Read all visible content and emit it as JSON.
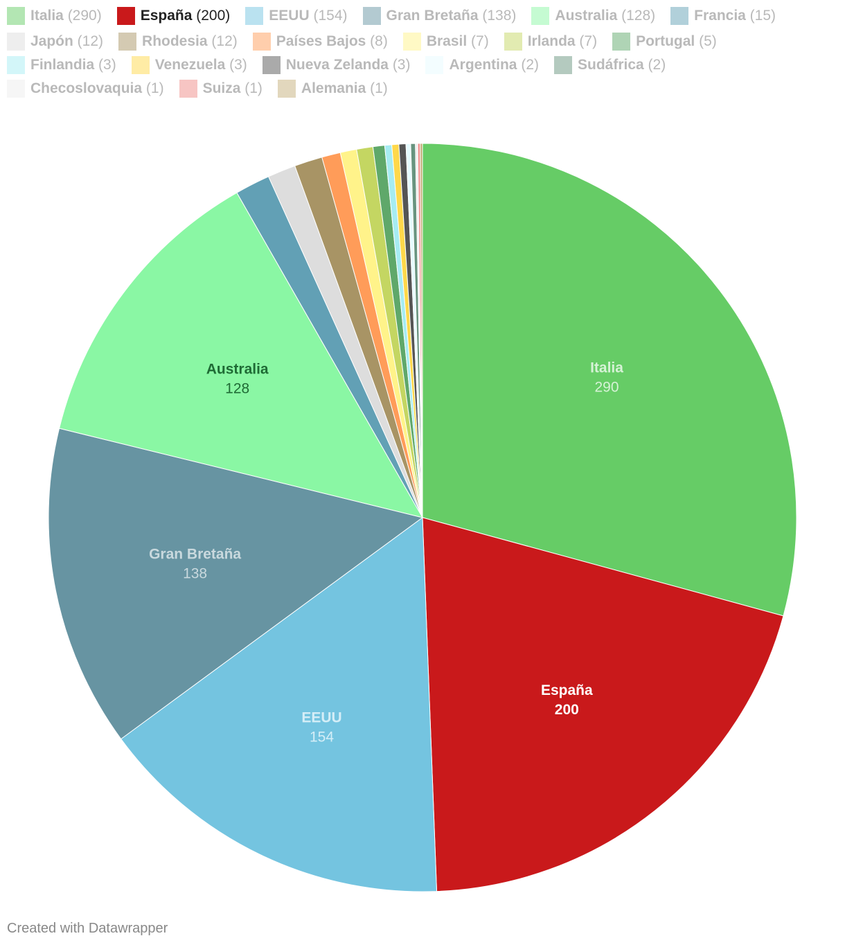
{
  "chart_data": {
    "type": "pie",
    "highlighted": "España",
    "slices": [
      {
        "name": "Italia",
        "value": 290,
        "color": "#66cc66",
        "legend_color": "#b3e6b3",
        "label_color": "#d6f2d6",
        "label_bold_value": false
      },
      {
        "name": "España",
        "value": 200,
        "color": "#c9191b",
        "legend_color": "#c9191b",
        "label_color": "#ffffff",
        "label_bold_value": true
      },
      {
        "name": "EEUU",
        "value": 154,
        "color": "#74c4e0",
        "legend_color": "#bae2f0",
        "label_color": "#d5eef7",
        "label_bold_value": false
      },
      {
        "name": "Gran Bretaña",
        "value": 138,
        "color": "#6794a2",
        "legend_color": "#b3cad1",
        "label_color": "#c9d9de",
        "label_bold_value": false
      },
      {
        "name": "Australia",
        "value": 128,
        "color": "#8af7a4",
        "legend_color": "#c5fbd2",
        "label_color": "#1f6b35",
        "label_bold_value": false
      },
      {
        "name": "Francia",
        "value": 15,
        "color": "#62a0b5",
        "legend_color": "#b1d0da"
      },
      {
        "name": "Japón",
        "value": 12,
        "color": "#dddddd",
        "legend_color": "#eeeeee"
      },
      {
        "name": "Rhodesia",
        "value": 12,
        "color": "#a89465",
        "legend_color": "#d4cab2"
      },
      {
        "name": "Países Bajos",
        "value": 8,
        "color": "#ff9c59",
        "legend_color": "#ffceac"
      },
      {
        "name": "Brasil",
        "value": 7,
        "color": "#fff38a",
        "legend_color": "#fff9c5"
      },
      {
        "name": "Irlanda",
        "value": 7,
        "color": "#c4d662",
        "legend_color": "#e2ebb1"
      },
      {
        "name": "Portugal",
        "value": 5,
        "color": "#5fa86a",
        "legend_color": "#afd4b5"
      },
      {
        "name": "Finlandia",
        "value": 3,
        "color": "#a6ecf2",
        "legend_color": "#d3f6f9"
      },
      {
        "name": "Venezuela",
        "value": 3,
        "color": "#ffd84a",
        "legend_color": "#ffeca5"
      },
      {
        "name": "Nueva Zelanda",
        "value": 3,
        "color": "#555555",
        "legend_color": "#aaaaaa"
      },
      {
        "name": "Argentina",
        "value": 2,
        "color": "#e6fbff",
        "legend_color": "#f3fdff"
      },
      {
        "name": "Sudáfrica",
        "value": 2,
        "color": "#68947f",
        "legend_color": "#b4cabf"
      },
      {
        "name": "Checoslovaquia",
        "value": 1,
        "color": "#eeeeee",
        "legend_color": "#f6f6f6"
      },
      {
        "name": "Suiza",
        "value": 1,
        "color": "#ef8a86",
        "legend_color": "#f7c5c3"
      },
      {
        "name": "Alemania",
        "value": 1,
        "color": "#c4ae7a",
        "legend_color": "#e2d7bd"
      }
    ]
  },
  "footer": {
    "credit": "Created with Datawrapper"
  }
}
